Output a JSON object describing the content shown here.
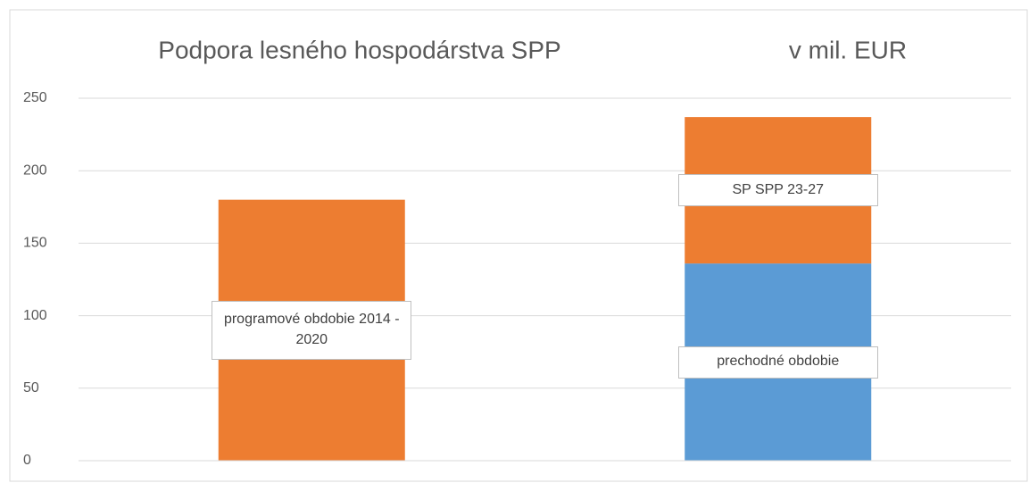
{
  "chart_data": {
    "type": "stacked_bar",
    "title": "Podpora lesného hospodárstva SPP",
    "subtitle": "v mil. EUR",
    "categories": [
      null,
      null
    ],
    "series": [
      {
        "name": "programové obdobie 2014 - 2020",
        "color": "#ed7d31",
        "values": [
          180,
          null
        ]
      },
      {
        "name": "prechodné obdobie",
        "color": "#5b9bd5",
        "values": [
          null,
          136
        ]
      },
      {
        "name": "SP SPP 23-27",
        "color": "#ed7d31",
        "values": [
          null,
          101
        ]
      }
    ],
    "ylim": [
      0,
      250
    ],
    "yticks": [
      0,
      50,
      100,
      150,
      200,
      250
    ],
    "grid": true,
    "legend": false
  }
}
